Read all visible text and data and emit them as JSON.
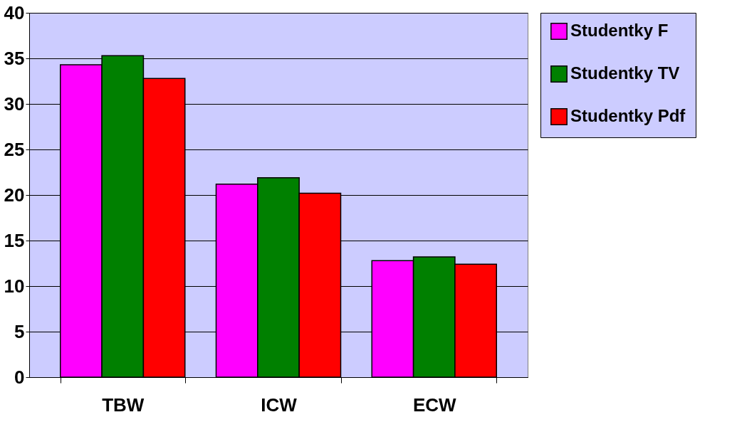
{
  "chart_data": {
    "type": "bar",
    "categories": [
      "TBW",
      "ICW",
      "ECW"
    ],
    "series": [
      {
        "name": "Studentky F",
        "color": "#ff00ff",
        "values": [
          34.3,
          21.2,
          12.8
        ]
      },
      {
        "name": "Studentky TV",
        "color": "#008000",
        "values": [
          35.3,
          21.9,
          13.2
        ]
      },
      {
        "name": "Studentky Pdf",
        "color": "#ff0000",
        "values": [
          32.8,
          20.2,
          12.4
        ]
      }
    ],
    "ylim": [
      0,
      40
    ],
    "yticks": [
      0,
      5,
      10,
      15,
      20,
      25,
      30,
      35,
      40
    ],
    "grid": "y",
    "legend": "right"
  }
}
